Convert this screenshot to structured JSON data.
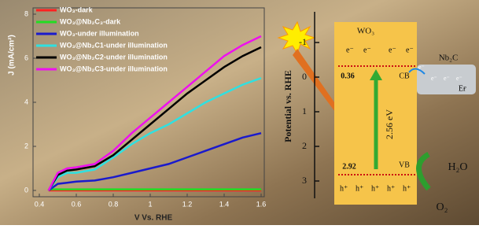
{
  "chart_data": {
    "type": "line",
    "xlabel": "V Vs. RHE",
    "ylabel": "J (mA/cm²)",
    "x": [
      0.45,
      0.5,
      0.55,
      0.6,
      0.7,
      0.8,
      0.9,
      1.0,
      1.1,
      1.2,
      1.3,
      1.4,
      1.5,
      1.6
    ],
    "xlim": [
      0.4,
      1.6
    ],
    "xticks": [
      0.4,
      0.6,
      0.8,
      1.0,
      1.2,
      1.4,
      1.6
    ],
    "ylim": [
      0,
      8
    ],
    "yticks": [
      0,
      2,
      4,
      6,
      8
    ],
    "series": [
      {
        "name": "WO₃-dark",
        "color": "#ff2020",
        "values": [
          0,
          0,
          0,
          0,
          0,
          0,
          0,
          0,
          0,
          0,
          0,
          0,
          0,
          0
        ]
      },
      {
        "name": "WO₃@Nb₂C₃-dark",
        "color": "#22dd22",
        "values": [
          0.05,
          0.05,
          0.05,
          0.05,
          0.05,
          0.05,
          0.05,
          0.05,
          0.05,
          0.05,
          0.05,
          0.05,
          0.05,
          0.05
        ]
      },
      {
        "name": "WO₃-under illumination",
        "color": "#1a1acc",
        "values": [
          0,
          0.3,
          0.35,
          0.4,
          0.45,
          0.6,
          0.8,
          1.0,
          1.2,
          1.5,
          1.8,
          2.1,
          2.4,
          2.6
        ]
      },
      {
        "name": "WO₃@Nb₂C1-under illumination",
        "color": "#30e0e0",
        "values": [
          0,
          0.6,
          0.8,
          0.8,
          0.95,
          1.5,
          2.1,
          2.6,
          3.0,
          3.5,
          4.0,
          4.4,
          4.8,
          5.1
        ]
      },
      {
        "name": "WO₃@Nb₂C2-under illumination",
        "color": "#000000",
        "values": [
          0,
          0.7,
          0.9,
          0.95,
          1.1,
          1.6,
          2.3,
          3.0,
          3.7,
          4.4,
          5.0,
          5.6,
          6.1,
          6.5
        ]
      },
      {
        "name": "WO₃@Nb₂C3-under illumination",
        "color": "#ee10ee",
        "values": [
          0,
          0.8,
          1.0,
          1.05,
          1.2,
          1.8,
          2.6,
          3.3,
          4.0,
          4.7,
          5.4,
          6.1,
          6.6,
          7.0
        ]
      }
    ]
  },
  "diagram": {
    "axis_title": "Potential vs. RHE",
    "potential_ticks": [
      -1,
      0,
      1,
      2,
      3
    ],
    "semiconductor": "WO₃",
    "cocatalyst": "Nb₂C",
    "fermi": "Eғ",
    "cb": "CB",
    "vb": "VB",
    "cb_potential": "0.36",
    "vb_potential": "2.92",
    "band_gap": "2.56 eV",
    "cb_electrons": [
      "e⁻",
      "e⁻",
      "e⁻",
      "e⁻"
    ],
    "vb_holes": [
      "h⁺",
      "h⁺",
      "h⁺",
      "h⁺",
      "h⁺"
    ],
    "nb2c_electrons": [
      "e⁻",
      "e⁻",
      "e⁻",
      "e⁻"
    ],
    "reactant": "H₂O",
    "product": "O₂"
  }
}
